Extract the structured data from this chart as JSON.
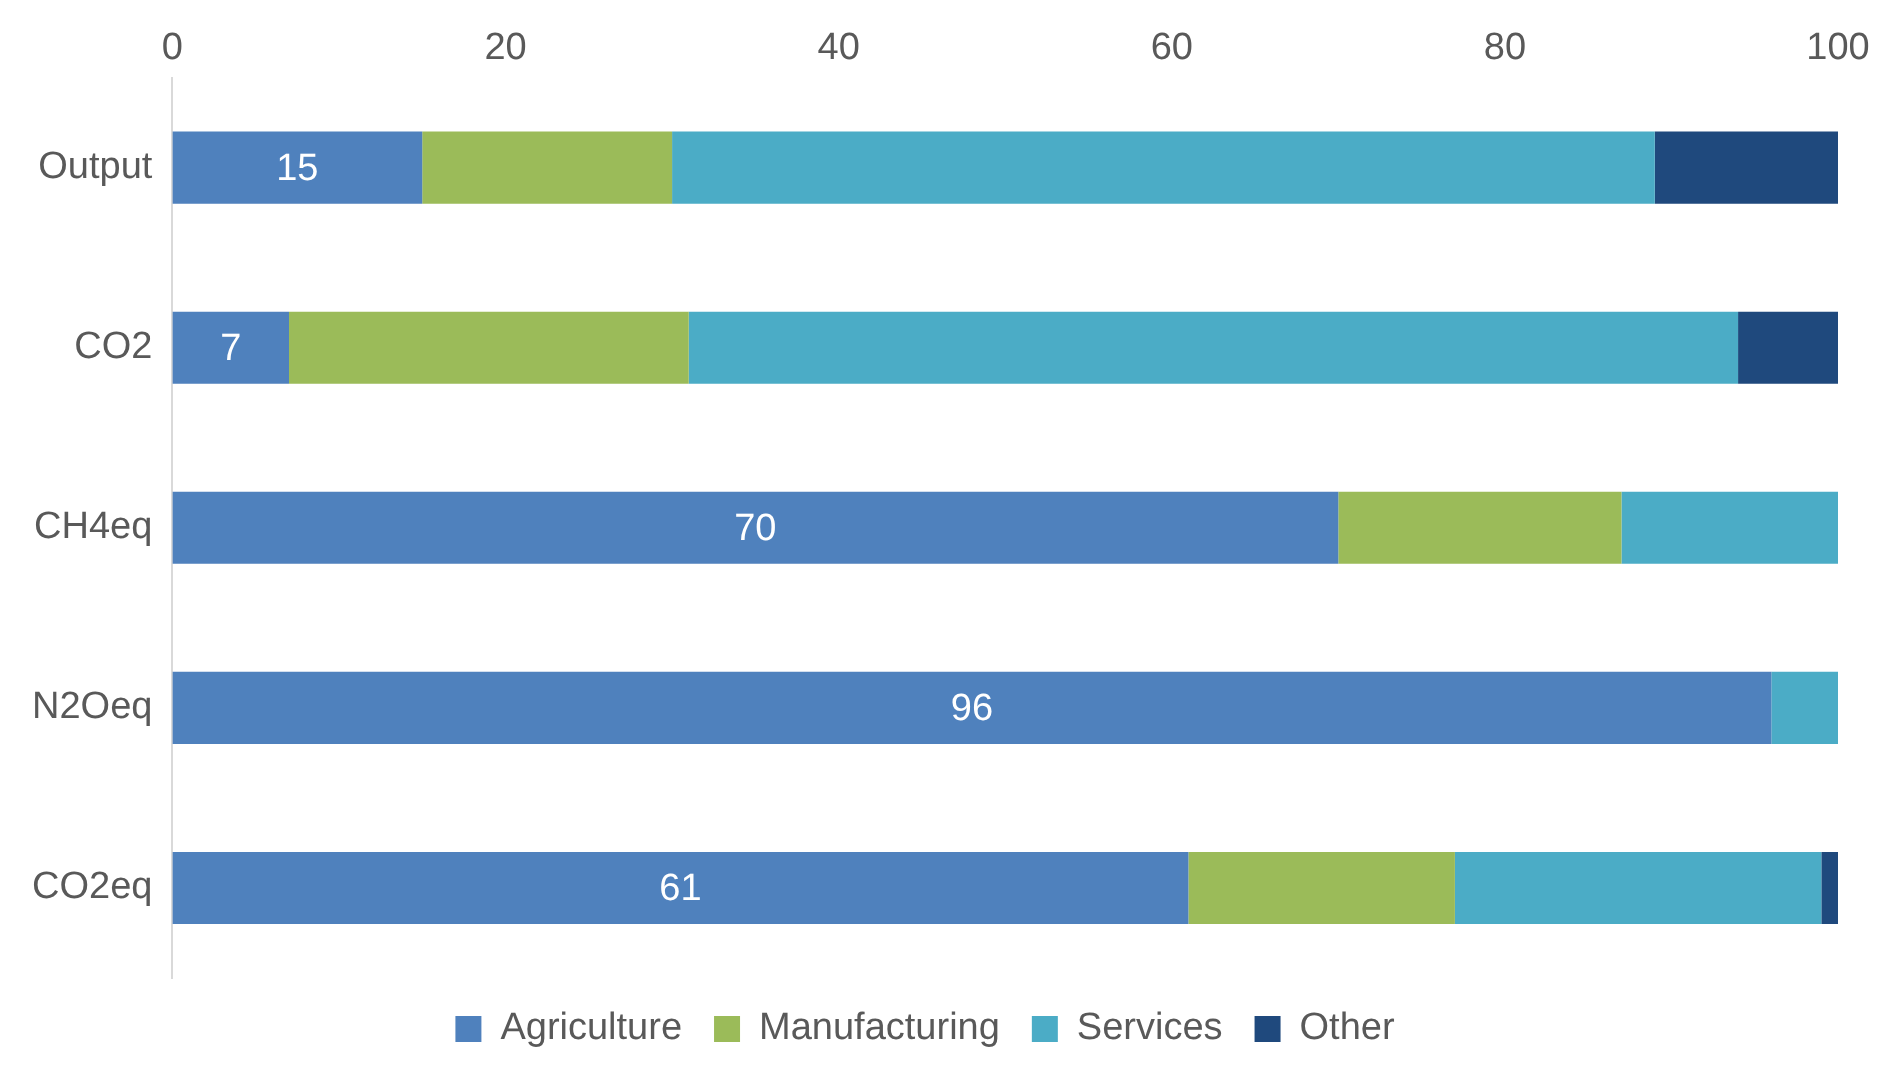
{
  "chart_data": {
    "type": "bar",
    "orientation": "horizontal",
    "stacked": true,
    "categories": [
      "Output",
      "CO2",
      "CH4eq",
      "N2Oeq",
      "CO2eq"
    ],
    "series": [
      {
        "name": "Agriculture",
        "color": "#4f81bd",
        "values": [
          15,
          7,
          70,
          96,
          61
        ],
        "value_labels": [
          "15",
          "7",
          "70",
          "96",
          "61"
        ]
      },
      {
        "name": "Manufacturing",
        "color": "#9bbb59",
        "values": [
          15,
          24,
          17,
          0,
          16
        ]
      },
      {
        "name": "Services",
        "color": "#4bacc6",
        "values": [
          59,
          63,
          13,
          4,
          22
        ]
      },
      {
        "name": "Other",
        "color": "#1f497d",
        "values": [
          11,
          6,
          0,
          0,
          1
        ]
      }
    ],
    "xlim": [
      0,
      100
    ],
    "xticks": [
      0,
      20,
      40,
      60,
      80,
      100
    ],
    "grid": false,
    "legend": "bottom"
  }
}
